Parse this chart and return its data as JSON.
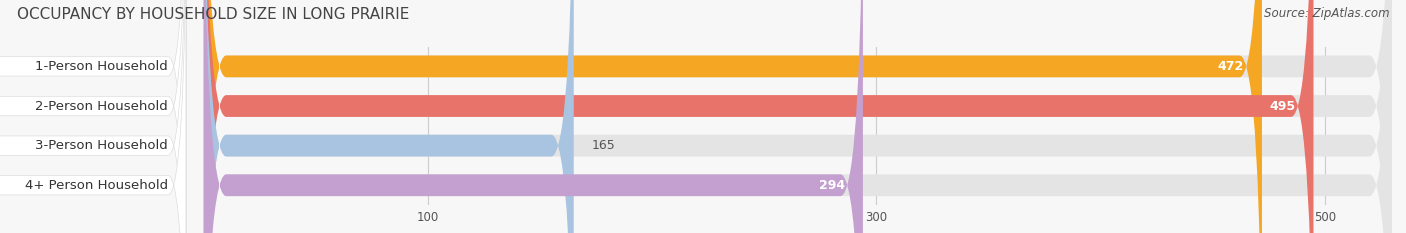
{
  "title": "OCCUPANCY BY HOUSEHOLD SIZE IN LONG PRAIRIE",
  "source": "Source: ZipAtlas.com",
  "categories": [
    "1-Person Household",
    "2-Person Household",
    "3-Person Household",
    "4+ Person Household"
  ],
  "values": [
    472,
    495,
    165,
    294
  ],
  "bar_colors": [
    "#f5a623",
    "#e8736a",
    "#a8c4e0",
    "#c4a0d0"
  ],
  "xlim_data": [
    0,
    530
  ],
  "xticks": [
    100,
    300,
    500
  ],
  "label_fontsize": 9.5,
  "value_fontsize": 9,
  "title_fontsize": 11,
  "source_fontsize": 8.5,
  "background_color": "#f7f7f7",
  "bar_bg_color": "#e4e4e4",
  "label_bg_color": "#ffffff",
  "text_color": "#555555",
  "title_color": "#444444"
}
